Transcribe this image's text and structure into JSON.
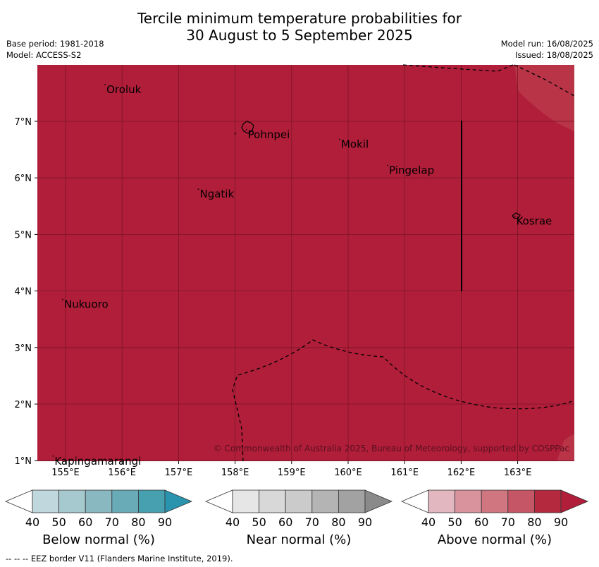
{
  "title_line1": "Tercile minimum temperature probabilities for",
  "title_line2": "30 August to 5 September 2025",
  "base_period": "Base period: 1981-2018",
  "model": "Model: ACCESS-S2",
  "model_run": "Model run: 16/08/2025",
  "issued": "Issued: 18/08/2025",
  "map": {
    "lon_ticks": [
      "155°E",
      "156°E",
      "157°E",
      "158°E",
      "159°E",
      "160°E",
      "161°E",
      "162°E",
      "163°E"
    ],
    "lat_ticks": [
      "7°N",
      "6°N",
      "5°N",
      "4°N",
      "3°N",
      "2°N",
      "1°N"
    ],
    "places": [
      {
        "name": "Oroluk",
        "lon": 155.7,
        "lat": 7.65
      },
      {
        "name": "Pohnpei",
        "lon": 158.2,
        "lat": 6.85
      },
      {
        "name": "Mokil",
        "lon": 159.85,
        "lat": 6.68
      },
      {
        "name": "Pingelap",
        "lon": 160.7,
        "lat": 6.22
      },
      {
        "name": "Ngatik",
        "lon": 157.35,
        "lat": 5.8
      },
      {
        "name": "Kosrae",
        "lon": 162.95,
        "lat": 5.32
      },
      {
        "name": "Nukuoro",
        "lon": 154.95,
        "lat": 3.85
      },
      {
        "name": "Kapingamarangi",
        "lon": 154.78,
        "lat": 1.08
      }
    ],
    "copyright": "© Commonwealth of Australia 2025, Bureau of Meteorology, supported by COSPPac",
    "dominant_color": "#b01e39"
  },
  "colorbars": [
    {
      "label": "Below normal (%)",
      "ticks": [
        "40",
        "50",
        "60",
        "70",
        "80",
        "90"
      ],
      "colors": [
        "#ffffff",
        "#c0d7de",
        "#a6c8cf",
        "#8ab8c1",
        "#6aabb8",
        "#46a0b0",
        "#2a93ae"
      ]
    },
    {
      "label": "Near normal (%)",
      "ticks": [
        "40",
        "50",
        "60",
        "70",
        "80",
        "90"
      ],
      "colors": [
        "#ffffff",
        "#e6e6e6",
        "#d8d8d8",
        "#cbcbcb",
        "#b4b4b4",
        "#a2a2a2",
        "#8a8a8a"
      ]
    },
    {
      "label": "Above normal (%)",
      "ticks": [
        "40",
        "50",
        "60",
        "70",
        "80",
        "90"
      ],
      "colors": [
        "#ffffff",
        "#e2b7bf",
        "#d8939c",
        "#cf7680",
        "#c45665",
        "#b5293f",
        "#b01e39"
      ]
    }
  ],
  "footnote": "--  --  -- EEZ border V11 (Flanders Marine Institute, 2019)."
}
